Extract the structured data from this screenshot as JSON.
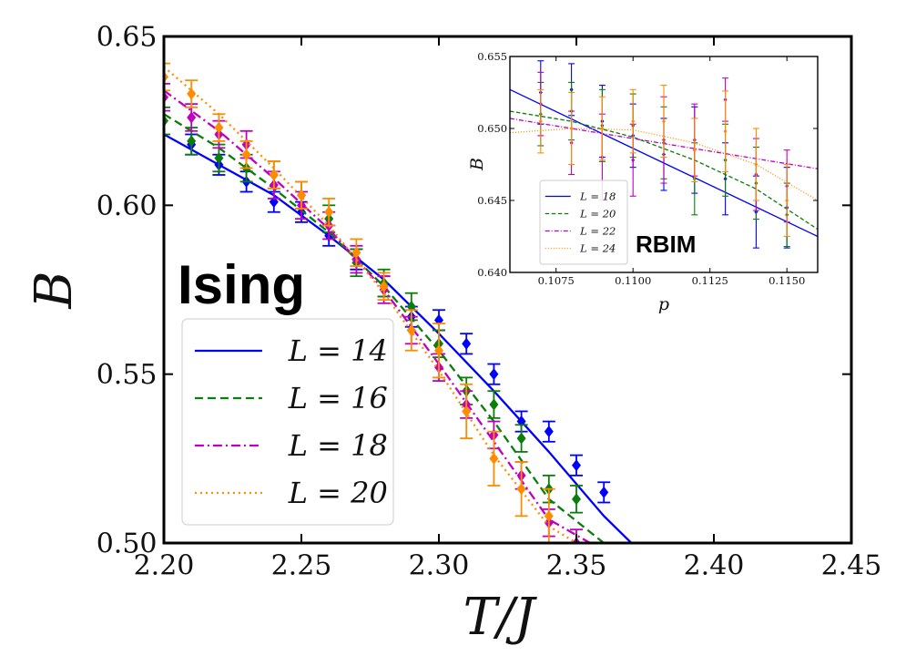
{
  "chart_data": [
    {
      "id": "main",
      "type": "line",
      "xlabel": "T/J",
      "ylabel": "B",
      "xlim": [
        2.2,
        2.45
      ],
      "ylim": [
        0.5,
        0.65
      ],
      "x_ticks": [
        2.2,
        2.25,
        2.3,
        2.35,
        2.4,
        2.45
      ],
      "x_tick_labels": [
        "2.20",
        "2.25",
        "2.30",
        "2.35",
        "2.40",
        "2.45"
      ],
      "y_ticks": [
        0.5,
        0.55,
        0.6,
        0.65
      ],
      "y_tick_labels": [
        "0.50",
        "0.55",
        "0.60",
        "0.65"
      ],
      "annotation": "Ising",
      "legend_position": "lower-left",
      "series": [
        {
          "name": "L = 14",
          "color": "#0000ff",
          "dash": "solid",
          "x": [
            2.21,
            2.22,
            2.23,
            2.24,
            2.25,
            2.26,
            2.27,
            2.28,
            2.29,
            2.3,
            2.31,
            2.32,
            2.33,
            2.34,
            2.35,
            2.36
          ],
          "y": [
            0.618,
            0.612,
            0.607,
            0.601,
            0.598,
            0.591,
            0.584,
            0.576,
            0.567,
            0.566,
            0.559,
            0.55,
            0.536,
            0.533,
            0.523,
            0.515
          ],
          "err": [
            0.003,
            0.003,
            0.003,
            0.003,
            0.003,
            0.003,
            0.003,
            0.003,
            0.003,
            0.003,
            0.003,
            0.003,
            0.003,
            0.003,
            0.003,
            0.003
          ],
          "fit_x": [
            2.2,
            2.22,
            2.24,
            2.26,
            2.28,
            2.3,
            2.32,
            2.34,
            2.36,
            2.37
          ],
          "fit_y": [
            0.621,
            0.612,
            0.603,
            0.591,
            0.578,
            0.562,
            0.545,
            0.527,
            0.508,
            0.5
          ]
        },
        {
          "name": "L = 16",
          "color": "#0a7d0a",
          "dash": "dashed",
          "x": [
            2.2,
            2.21,
            2.22,
            2.23,
            2.24,
            2.25,
            2.26,
            2.27,
            2.28,
            2.29,
            2.3,
            2.31,
            2.32,
            2.33,
            2.34,
            2.35
          ],
          "y": [
            0.625,
            0.619,
            0.614,
            0.611,
            0.609,
            0.603,
            0.596,
            0.583,
            0.577,
            0.57,
            0.559,
            0.545,
            0.541,
            0.531,
            0.516,
            0.513
          ],
          "err": [
            0.004,
            0.004,
            0.004,
            0.004,
            0.004,
            0.004,
            0.004,
            0.004,
            0.004,
            0.004,
            0.004,
            0.004,
            0.004,
            0.004,
            0.004,
            0.004
          ],
          "fit_x": [
            2.2,
            2.22,
            2.24,
            2.26,
            2.28,
            2.3,
            2.32,
            2.34,
            2.36
          ],
          "fit_y": [
            0.627,
            0.617,
            0.605,
            0.592,
            0.576,
            0.557,
            0.536,
            0.513,
            0.5
          ]
        },
        {
          "name": "L = 18",
          "color": "#c000c0",
          "dash": "dashdot",
          "x": [
            2.2,
            2.21,
            2.22,
            2.23,
            2.24,
            2.25,
            2.26,
            2.27,
            2.28,
            2.29,
            2.3,
            2.31,
            2.32,
            2.33,
            2.34,
            2.35
          ],
          "y": [
            0.632,
            0.626,
            0.621,
            0.618,
            0.606,
            0.6,
            0.594,
            0.584,
            0.575,
            0.563,
            0.552,
            0.541,
            0.532,
            0.52,
            0.506,
            0.5
          ],
          "err": [
            0.004,
            0.004,
            0.004,
            0.004,
            0.004,
            0.004,
            0.004,
            0.004,
            0.004,
            0.004,
            0.004,
            0.004,
            0.004,
            0.004,
            0.004,
            0.004
          ],
          "fit_x": [
            2.2,
            2.22,
            2.24,
            2.26,
            2.28,
            2.3,
            2.32,
            2.34,
            2.355
          ],
          "fit_y": [
            0.634,
            0.622,
            0.608,
            0.593,
            0.575,
            0.553,
            0.53,
            0.507,
            0.5
          ]
        },
        {
          "name": "L = 20",
          "color": "#ff8c00",
          "dash": "dotted",
          "x": [
            2.2,
            2.21,
            2.22,
            2.23,
            2.24,
            2.25,
            2.26,
            2.27,
            2.28,
            2.29,
            2.3,
            2.31,
            2.32,
            2.33,
            2.34
          ],
          "y": [
            0.638,
            0.633,
            0.623,
            0.615,
            0.609,
            0.603,
            0.598,
            0.586,
            0.576,
            0.563,
            0.557,
            0.539,
            0.525,
            0.516,
            0.508
          ],
          "err": [
            0.004,
            0.004,
            0.004,
            0.004,
            0.004,
            0.004,
            0.004,
            0.004,
            0.004,
            0.006,
            0.008,
            0.008,
            0.008,
            0.008,
            0.008
          ],
          "fit_x": [
            2.2,
            2.22,
            2.24,
            2.26,
            2.28,
            2.3,
            2.32,
            2.34,
            2.35
          ],
          "fit_y": [
            0.641,
            0.627,
            0.611,
            0.594,
            0.574,
            0.551,
            0.526,
            0.505,
            0.5
          ]
        }
      ]
    },
    {
      "id": "inset",
      "type": "line",
      "xlabel": "p",
      "ylabel": "B",
      "xlim": [
        0.106,
        0.116
      ],
      "ylim": [
        0.64,
        0.655
      ],
      "x_ticks": [
        0.1075,
        0.11,
        0.1125,
        0.115
      ],
      "x_tick_labels": [
        "0.1075",
        "0.1100",
        "0.1125",
        "0.1150"
      ],
      "y_ticks": [
        0.64,
        0.645,
        0.65,
        0.655
      ],
      "y_tick_labels": [
        "0.640",
        "0.645",
        "0.650",
        "0.655"
      ],
      "annotation": "RBIM",
      "legend_position": "lower-left",
      "series": [
        {
          "name": "L = 18",
          "color": "#0000ff",
          "dash": "solid",
          "x": [
            0.107,
            0.108,
            0.109,
            0.11,
            0.111,
            0.112,
            0.113,
            0.114,
            0.115
          ],
          "y": [
            0.6525,
            0.6527,
            0.6505,
            0.6495,
            0.6482,
            0.6485,
            0.6465,
            0.6442,
            0.6445
          ],
          "err": [
            0.0022,
            0.0018,
            0.0025,
            0.0022,
            0.0025,
            0.003,
            0.0025,
            0.0025,
            0.0028
          ],
          "fit_x": [
            0.106,
            0.116
          ],
          "fit_y": [
            0.6527,
            0.6425
          ]
        },
        {
          "name": "L = 20",
          "color": "#0a7d0a",
          "dash": "dashed",
          "x": [
            0.107,
            0.108,
            0.109,
            0.11,
            0.111,
            0.112,
            0.113,
            0.114,
            0.115
          ],
          "y": [
            0.651,
            0.6512,
            0.6502,
            0.6502,
            0.649,
            0.6465,
            0.6478,
            0.6462,
            0.644
          ],
          "err": [
            0.0022,
            0.002,
            0.0025,
            0.0022,
            0.0025,
            0.0025,
            0.0025,
            0.0025,
            0.0022
          ],
          "fit_x": [
            0.106,
            0.108,
            0.11,
            0.112,
            0.114,
            0.116
          ],
          "fit_y": [
            0.6512,
            0.6505,
            0.6494,
            0.6478,
            0.6458,
            0.643
          ]
        },
        {
          "name": "L = 22",
          "color": "#c000c0",
          "dash": "dashdot",
          "x": [
            0.107,
            0.108,
            0.109,
            0.11,
            0.111,
            0.112,
            0.113,
            0.114,
            0.115
          ],
          "y": [
            0.6517,
            0.649,
            0.648,
            0.6478,
            0.6492,
            0.6492,
            0.652,
            0.6468,
            0.646
          ],
          "err": [
            0.0022,
            0.0022,
            0.003,
            0.0025,
            0.003,
            0.0025,
            0.0015,
            0.0025,
            0.0025
          ],
          "fit_x": [
            0.106,
            0.116
          ],
          "fit_y": [
            0.6507,
            0.6472
          ]
        },
        {
          "name": "L = 24",
          "color": "#ff8c00",
          "dash": "dotted",
          "x": [
            0.107,
            0.108,
            0.109,
            0.11,
            0.111,
            0.112,
            0.113,
            0.114,
            0.115
          ],
          "y": [
            0.6505,
            0.65,
            0.65,
            0.6505,
            0.6505,
            0.6485,
            0.6498,
            0.6475,
            0.645
          ],
          "err": [
            0.0022,
            0.0025,
            0.0022,
            0.0022,
            0.0025,
            0.0022,
            0.0028,
            0.0025,
            0.0025
          ],
          "fit_x": [
            0.106,
            0.108,
            0.11,
            0.112,
            0.114,
            0.116
          ],
          "fit_y": [
            0.6497,
            0.65,
            0.6499,
            0.649,
            0.6475,
            0.645
          ]
        }
      ]
    }
  ]
}
